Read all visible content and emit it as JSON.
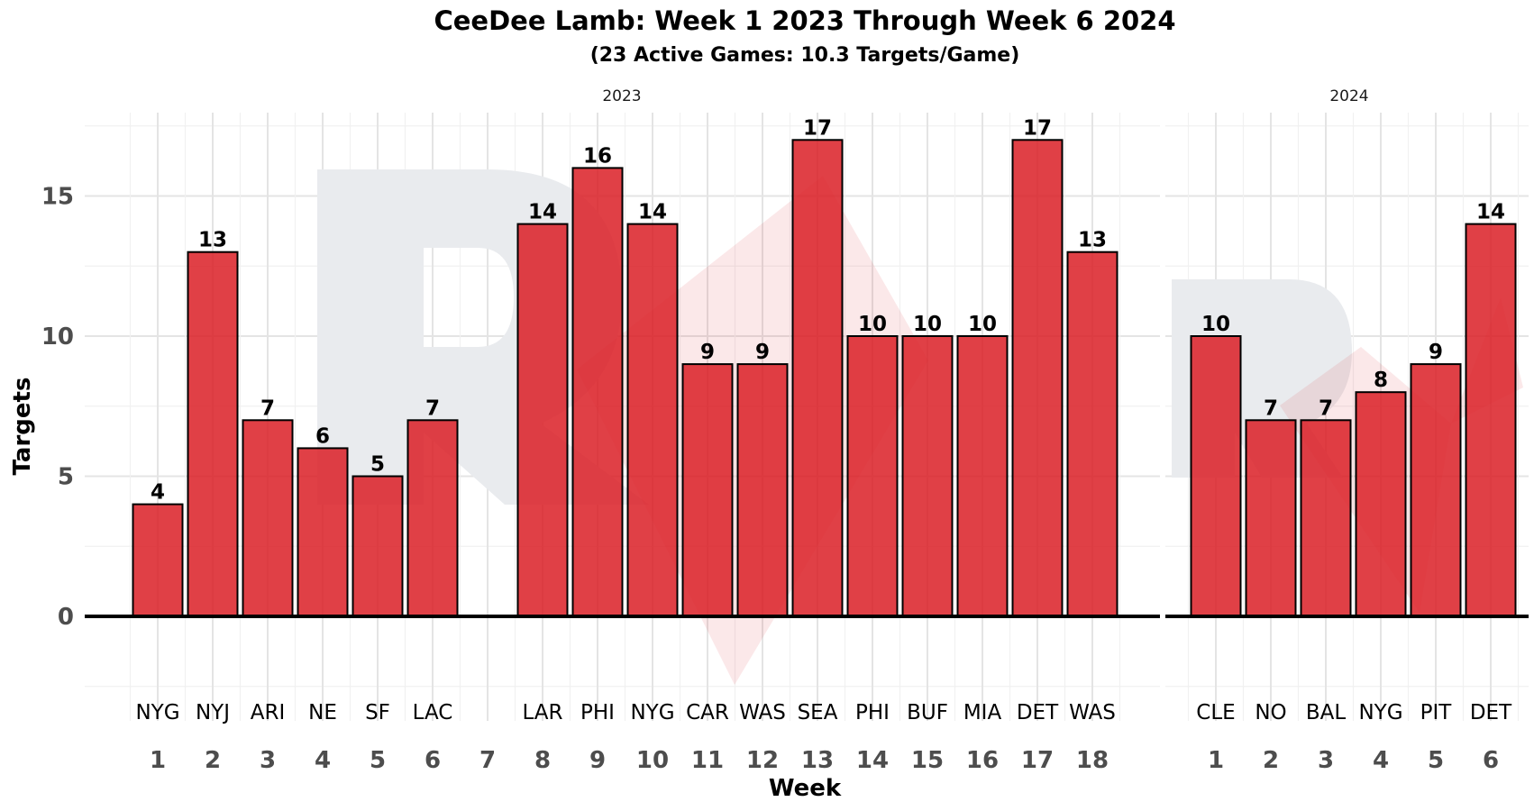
{
  "chart_data": {
    "type": "bar",
    "title": "CeeDee Lamb: Week 1 2023 Through Week 6 2024",
    "subtitle": "(23 Active Games: 10.3 Targets/Game)",
    "xlabel": "Week",
    "ylabel": "Targets",
    "ylim": [
      -2.5,
      18
    ],
    "yticks": [
      "0",
      "5",
      "10",
      "15"
    ],
    "grid": true,
    "watermark_color": "#e9ebee",
    "bar_color": "#da1f26",
    "panels": [
      {
        "facet_label": "2023",
        "weeks": [
          "1",
          "2",
          "3",
          "4",
          "5",
          "6",
          "7",
          "8",
          "9",
          "10",
          "11",
          "12",
          "13",
          "14",
          "15",
          "16",
          "17",
          "18"
        ],
        "bars": [
          {
            "week": "1",
            "opponent": "NYG",
            "targets": 4
          },
          {
            "week": "2",
            "opponent": "NYJ",
            "targets": 13
          },
          {
            "week": "3",
            "opponent": "ARI",
            "targets": 7
          },
          {
            "week": "4",
            "opponent": "NE",
            "targets": 6
          },
          {
            "week": "5",
            "opponent": "SF",
            "targets": 5
          },
          {
            "week": "6",
            "opponent": "LAC",
            "targets": 7
          },
          {
            "week": "8",
            "opponent": "LAR",
            "targets": 14
          },
          {
            "week": "9",
            "opponent": "PHI",
            "targets": 16
          },
          {
            "week": "10",
            "opponent": "NYG",
            "targets": 14
          },
          {
            "week": "11",
            "opponent": "CAR",
            "targets": 9
          },
          {
            "week": "12",
            "opponent": "WAS",
            "targets": 9
          },
          {
            "week": "13",
            "opponent": "SEA",
            "targets": 17
          },
          {
            "week": "14",
            "opponent": "PHI",
            "targets": 10
          },
          {
            "week": "15",
            "opponent": "BUF",
            "targets": 10
          },
          {
            "week": "16",
            "opponent": "MIA",
            "targets": 10
          },
          {
            "week": "17",
            "opponent": "DET",
            "targets": 17
          },
          {
            "week": "18",
            "opponent": "WAS",
            "targets": 13
          }
        ]
      },
      {
        "facet_label": "2024",
        "weeks": [
          "1",
          "2",
          "3",
          "4",
          "5",
          "6"
        ],
        "bars": [
          {
            "week": "1",
            "opponent": "CLE",
            "targets": 10
          },
          {
            "week": "2",
            "opponent": "NO",
            "targets": 7
          },
          {
            "week": "3",
            "opponent": "BAL",
            "targets": 7
          },
          {
            "week": "4",
            "opponent": "NYG",
            "targets": 8
          },
          {
            "week": "5",
            "opponent": "PIT",
            "targets": 9
          },
          {
            "week": "6",
            "opponent": "DET",
            "targets": 14
          }
        ]
      }
    ]
  }
}
